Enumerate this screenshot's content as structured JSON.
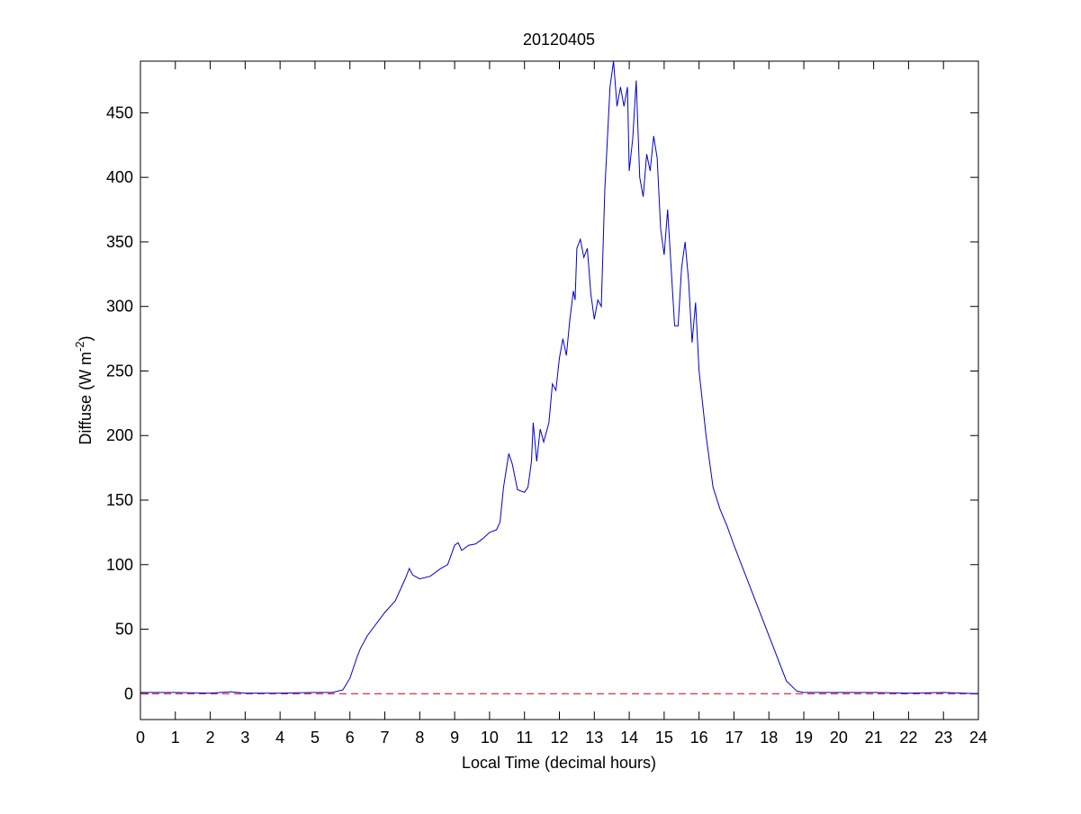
{
  "chart_data": {
    "type": "line",
    "title": "20120405",
    "xlabel": "Local Time (decimal hours)",
    "ylabel": [
      "Diffuse (W m",
      "-2",
      ")"
    ],
    "xlim": [
      0,
      24
    ],
    "ylim": [
      -20,
      490
    ],
    "xticks": [
      0,
      1,
      2,
      3,
      4,
      5,
      6,
      7,
      8,
      9,
      10,
      11,
      12,
      13,
      14,
      15,
      16,
      17,
      18,
      19,
      20,
      21,
      22,
      23,
      24
    ],
    "yticks": [
      0,
      50,
      100,
      150,
      200,
      250,
      300,
      350,
      400,
      450
    ],
    "x": [
      0,
      1,
      2,
      2.6,
      3,
      4,
      5,
      5.5,
      5.8,
      6.0,
      6.2,
      6.3,
      6.5,
      7.0,
      7.3,
      7.6,
      7.7,
      7.8,
      8.0,
      8.3,
      8.6,
      8.8,
      9.0,
      9.1,
      9.2,
      9.4,
      9.6,
      9.8,
      10.0,
      10.2,
      10.3,
      10.4,
      10.55,
      10.65,
      10.8,
      11.0,
      11.1,
      11.2,
      11.25,
      11.35,
      11.45,
      11.55,
      11.7,
      11.8,
      11.9,
      12.0,
      12.1,
      12.2,
      12.3,
      12.4,
      12.45,
      12.5,
      12.6,
      12.7,
      12.8,
      12.9,
      13.0,
      13.1,
      13.2,
      13.3,
      13.45,
      13.55,
      13.65,
      13.75,
      13.85,
      13.95,
      14.0,
      14.1,
      14.2,
      14.3,
      14.4,
      14.5,
      14.6,
      14.7,
      14.8,
      14.9,
      15.0,
      15.1,
      15.2,
      15.3,
      15.4,
      15.5,
      15.6,
      15.7,
      15.8,
      15.9,
      16.0,
      16.2,
      16.4,
      16.6,
      16.8,
      17.0,
      17.5,
      18.0,
      18.5,
      18.8,
      19.0,
      20,
      21,
      22,
      23,
      24
    ],
    "series": [
      {
        "color": "#0000cc",
        "values": [
          1,
          1,
          0.5,
          1.5,
          0.5,
          0.5,
          1,
          1,
          3,
          12,
          28,
          35,
          45,
          63,
          72,
          90,
          97,
          92,
          89,
          91,
          97,
          100,
          115,
          117,
          111,
          115,
          116,
          120,
          125,
          127,
          133,
          160,
          186,
          178,
          158,
          156,
          160,
          180,
          210,
          180,
          205,
          195,
          210,
          240,
          235,
          260,
          275,
          262,
          290,
          312,
          305,
          345,
          352,
          338,
          345,
          310,
          290,
          305,
          300,
          390,
          470,
          490,
          455,
          470,
          455,
          470,
          405,
          430,
          475,
          400,
          385,
          418,
          405,
          432,
          415,
          360,
          340,
          375,
          330,
          285,
          285,
          330,
          350,
          320,
          272,
          303,
          250,
          200,
          160,
          143,
          130,
          115,
          80,
          45,
          10,
          2,
          1,
          1,
          1,
          0.5,
          1,
          0
        ]
      }
    ],
    "reference_line": {
      "value": 0,
      "color": "#cc0000",
      "style": "dashed"
    }
  }
}
